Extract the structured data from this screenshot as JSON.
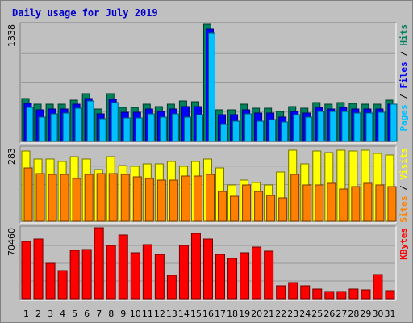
{
  "title": "Daily usage for July 2019",
  "colors": {
    "hits": "#00805c",
    "files": "#0000ff",
    "pages": "#00c0ff",
    "visits": "#ffff00",
    "sites": "#ff8000",
    "kbytes": "#ff0000",
    "title": "#0000cc",
    "weekend_label": "#00805c",
    "plot_background": "#c0c0c0",
    "gridline": "#999999"
  },
  "chart_data": [
    {
      "type": "bar",
      "title": "Daily usage for July 2019",
      "panel": "hits-files-pages",
      "y_max_label": "1338",
      "ylim": [
        0,
        1338
      ],
      "legend": [
        {
          "text": "Pages",
          "color": "#00c0ff"
        },
        {
          "text": " / ",
          "color": "#000000"
        },
        {
          "text": "Files",
          "color": "#0000ff"
        },
        {
          "text": " / ",
          "color": "#000000"
        },
        {
          "text": "Hits",
          "color": "#00805c"
        }
      ],
      "series": [
        {
          "name": "Hits",
          "color": "#00805c",
          "values": [
            490,
            420,
            420,
            420,
            470,
            540,
            370,
            540,
            390,
            390,
            420,
            400,
            420,
            460,
            450,
            1338,
            360,
            360,
            420,
            380,
            380,
            340,
            400,
            380,
            440,
            420,
            440,
            430,
            420,
            420,
            470
          ]
        },
        {
          "name": "Files",
          "color": "#0000ff",
          "values": [
            430,
            360,
            370,
            370,
            420,
            490,
            310,
            480,
            330,
            330,
            370,
            340,
            370,
            400,
            400,
            1280,
            300,
            300,
            360,
            320,
            320,
            280,
            340,
            320,
            390,
            370,
            390,
            370,
            370,
            370,
            420
          ]
        },
        {
          "name": "Pages",
          "color": "#00c0ff",
          "values": [
            390,
            280,
            310,
            320,
            380,
            460,
            260,
            440,
            270,
            270,
            310,
            280,
            310,
            280,
            300,
            1240,
            190,
            230,
            310,
            230,
            250,
            220,
            300,
            280,
            340,
            340,
            340,
            320,
            320,
            330,
            420
          ]
        }
      ]
    },
    {
      "type": "bar",
      "panel": "visits-sites",
      "y_max_label": "283",
      "ylim": [
        0,
        283
      ],
      "legend": [
        {
          "text": "Sites",
          "color": "#ff8000"
        },
        {
          "text": " / ",
          "color": "#000000"
        },
        {
          "text": "Visits",
          "color": "#ffff00"
        }
      ],
      "series": [
        {
          "name": "Visits",
          "color": "#ffff00",
          "values": [
            270,
            240,
            240,
            230,
            250,
            240,
            200,
            250,
            215,
            210,
            220,
            220,
            230,
            210,
            230,
            240,
            205,
            140,
            160,
            150,
            140,
            190,
            275,
            220,
            270,
            265,
            275,
            270,
            275,
            260,
            255
          ]
        },
        {
          "name": "Sites",
          "color": "#ff8000",
          "values": [
            205,
            185,
            180,
            180,
            165,
            180,
            185,
            185,
            180,
            170,
            165,
            160,
            160,
            175,
            175,
            180,
            115,
            95,
            140,
            115,
            100,
            90,
            180,
            140,
            140,
            145,
            125,
            135,
            145,
            140,
            135
          ]
        }
      ]
    },
    {
      "type": "bar",
      "panel": "kbytes",
      "y_max_label": "70460",
      "ylim": [
        0,
        70460
      ],
      "legend": [
        {
          "text": "KBytes",
          "color": "#ff0000"
        }
      ],
      "series": [
        {
          "name": "KBytes",
          "color": "#ff0000",
          "values": [
            57000,
            59000,
            35000,
            28000,
            48000,
            49000,
            70460,
            53000,
            63000,
            46000,
            54000,
            44000,
            23000,
            53000,
            65000,
            59000,
            44000,
            40000,
            46000,
            51000,
            47000,
            13000,
            16000,
            13000,
            10000,
            7000,
            7000,
            10000,
            9000,
            24000,
            8000
          ]
        }
      ]
    }
  ],
  "x_axis": {
    "categories": [
      "1",
      "2",
      "3",
      "4",
      "5",
      "6",
      "7",
      "8",
      "9",
      "10",
      "11",
      "12",
      "13",
      "14",
      "15",
      "16",
      "17",
      "18",
      "19",
      "20",
      "21",
      "22",
      "23",
      "24",
      "25",
      "26",
      "27",
      "28",
      "29",
      "30",
      "31"
    ],
    "weekend_days": [
      "6",
      "7",
      "13",
      "14",
      "20",
      "21",
      "27",
      "28"
    ]
  }
}
